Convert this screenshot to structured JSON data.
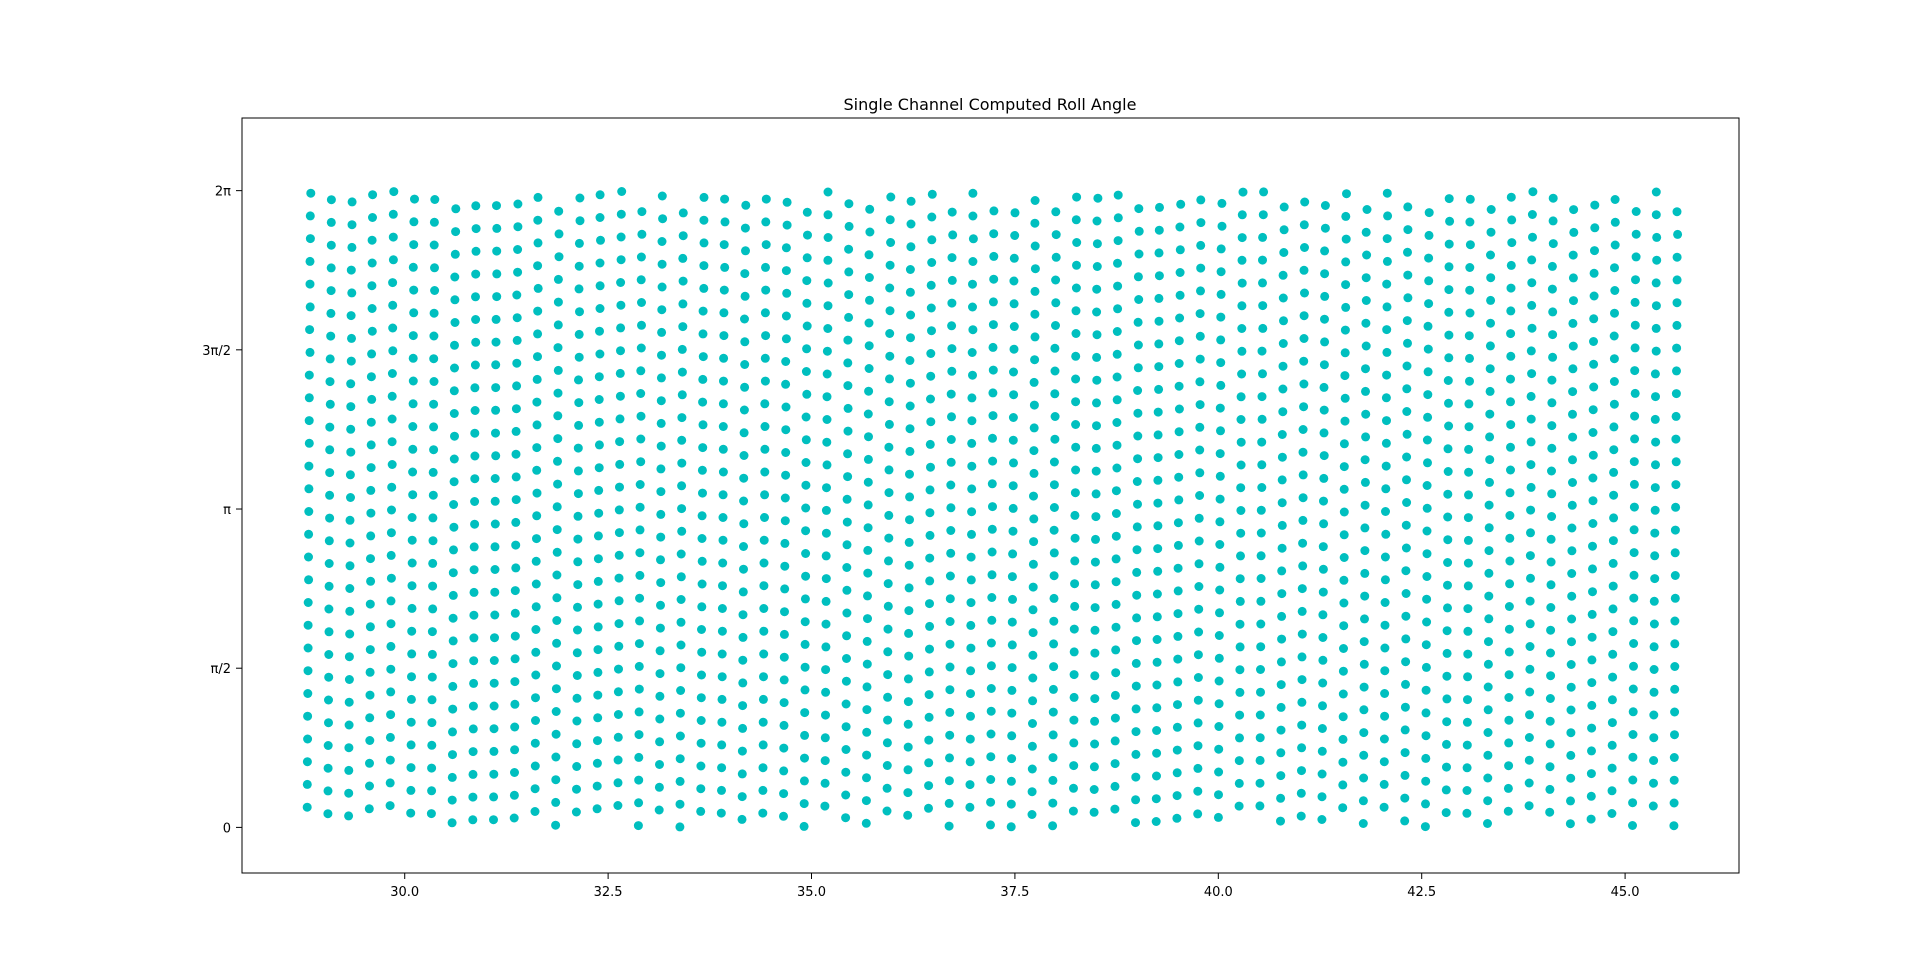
{
  "chart_data": {
    "type": "scatter",
    "title": "Single Channel Computed Roll Angle",
    "xlabel": "",
    "ylabel": "",
    "xlim": [
      28.0,
      46.4
    ],
    "ylim": [
      -0.45,
      7.0
    ],
    "x_ticks": [
      {
        "value": 30.0,
        "label": "30.0"
      },
      {
        "value": 32.5,
        "label": "32.5"
      },
      {
        "value": 35.0,
        "label": "35.0"
      },
      {
        "value": 37.5,
        "label": "37.5"
      },
      {
        "value": 40.0,
        "label": "40.0"
      },
      {
        "value": 42.5,
        "label": "42.5"
      },
      {
        "value": 45.0,
        "label": "45.0"
      }
    ],
    "y_ticks": [
      {
        "value": 0,
        "label": "0"
      },
      {
        "value": 1.5708,
        "label": "π/2"
      },
      {
        "value": 3.1416,
        "label": "π"
      },
      {
        "value": 4.7124,
        "label": "3π/2"
      },
      {
        "value": 6.2832,
        "label": "2π"
      }
    ],
    "grid": false,
    "marker_color": "#00bfbf",
    "series": [
      {
        "name": "",
        "description": "Dense periodic scatter: roughly 67 near-vertical strands of points spanning x = 28.8 to 45.6, each strand holding about 28 points from 0 to 2π; strands lean slightly (angle rises with x) and left-side strands split into paired columns near π/2 and 3π/2.",
        "x_start": 28.8,
        "x_end": 45.6,
        "strand_count": 67,
        "points_per_strand": 28,
        "strand_drift": 0.006,
        "y_min": 0,
        "y_max": 6.2832
      }
    ]
  }
}
